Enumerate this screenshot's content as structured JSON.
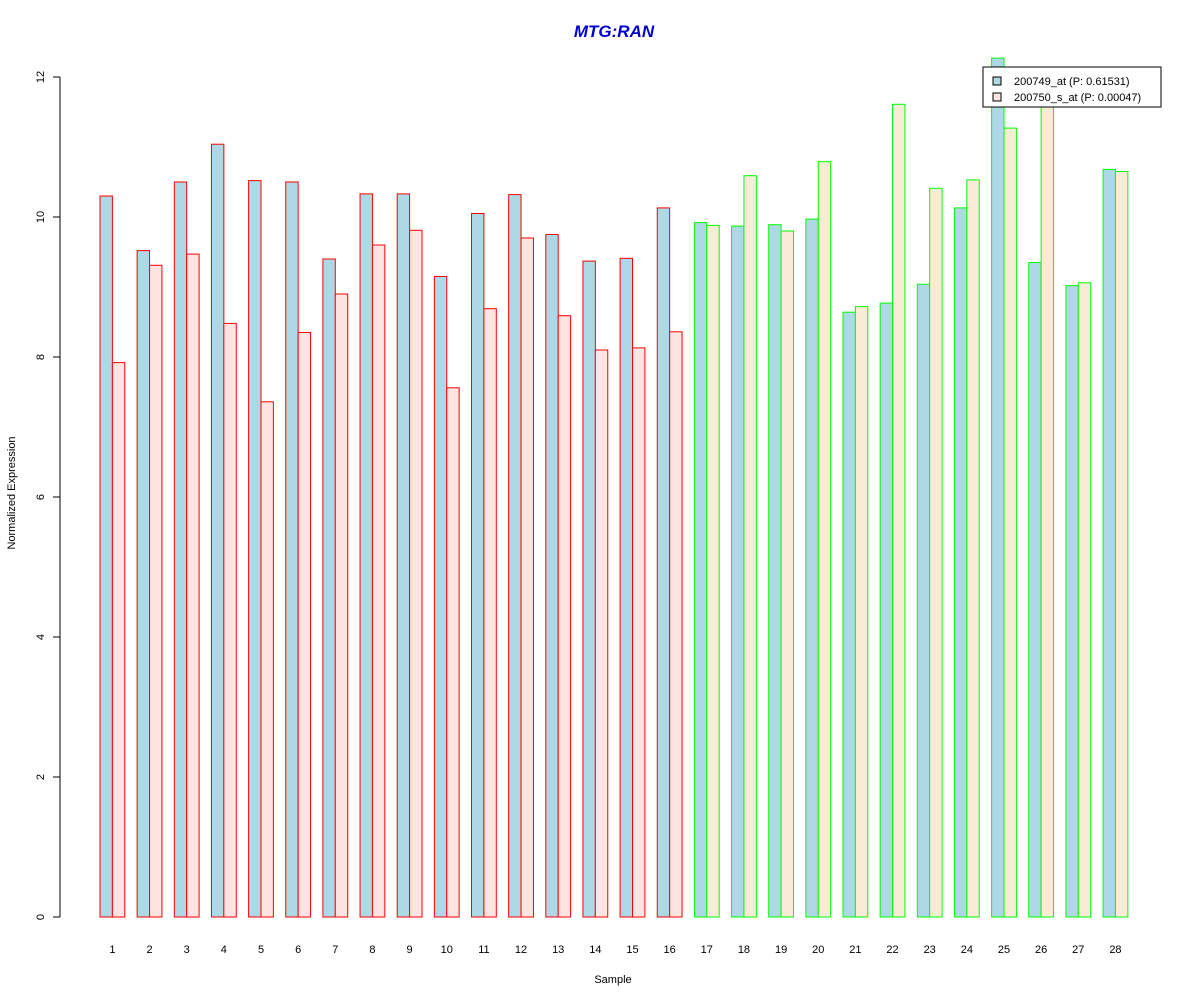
{
  "chart_data": {
    "type": "bar",
    "title": "MTG:RAN",
    "xlabel": "Sample",
    "ylabel": "Normalized Expression",
    "ylim": [
      0,
      12
    ],
    "yticks": [
      0,
      2,
      4,
      6,
      8,
      10,
      12
    ],
    "categories": [
      "1",
      "2",
      "3",
      "4",
      "5",
      "6",
      "7",
      "8",
      "9",
      "10",
      "11",
      "12",
      "13",
      "14",
      "15",
      "16",
      "17",
      "18",
      "19",
      "20",
      "21",
      "22",
      "23",
      "24",
      "25",
      "26",
      "27",
      "28"
    ],
    "series": [
      {
        "name": "200749_at (P: 0.61531)",
        "fill": "#add8e6",
        "values": [
          10.3,
          9.52,
          10.5,
          11.04,
          10.52,
          10.5,
          9.4,
          10.33,
          10.33,
          9.15,
          10.05,
          10.32,
          9.75,
          9.37,
          9.41,
          10.13,
          9.92,
          9.87,
          9.89,
          9.97,
          8.64,
          8.77,
          9.04,
          10.13,
          12.27,
          9.35,
          9.02,
          10.68
        ]
      },
      {
        "name": "200750_s_at (P: 0.00047)",
        "fill_group1": "#ffe4e1",
        "fill_group2": "#faebd7",
        "values": [
          7.92,
          9.31,
          9.47,
          8.48,
          7.36,
          8.35,
          8.9,
          9.6,
          9.81,
          7.56,
          8.69,
          9.7,
          8.59,
          8.1,
          8.13,
          8.36,
          9.88,
          10.59,
          9.8,
          10.79,
          8.72,
          11.61,
          10.41,
          10.53,
          11.27,
          11.6,
          9.06,
          10.65
        ]
      }
    ],
    "groups": [
      {
        "samples": [
          1,
          16
        ],
        "border": "#ff0000"
      },
      {
        "samples": [
          17,
          28
        ],
        "border": "#00ff00"
      }
    ],
    "title_color": "#0000cd",
    "legend_position": "top-right",
    "grid": false
  }
}
